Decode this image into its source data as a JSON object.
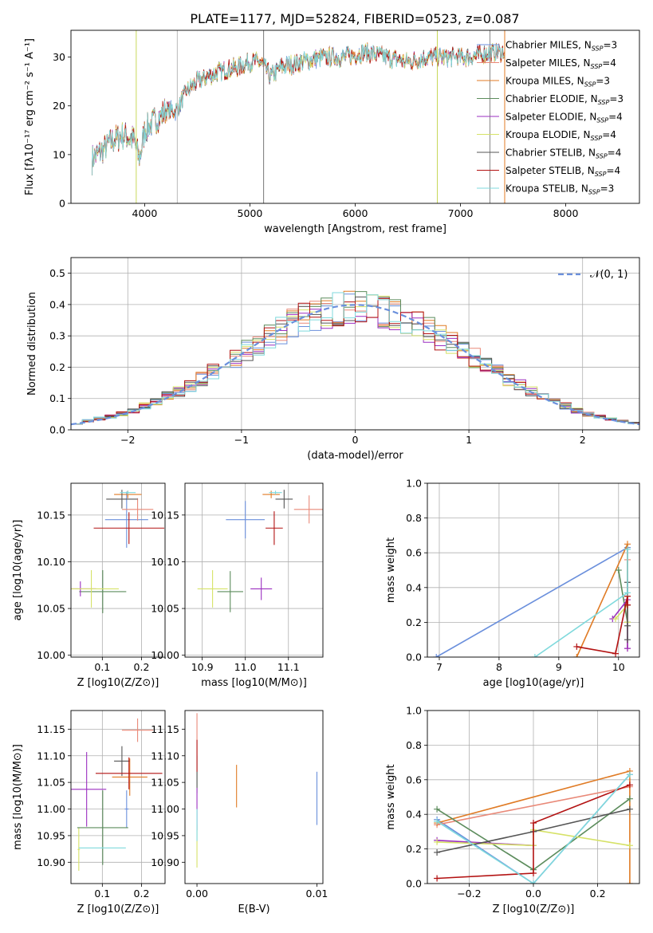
{
  "title": "PLATE=1177, MJD=52824, FIBERID=0523, z=0.087",
  "model_colors": [
    "#6a8fdc",
    "#e98978",
    "#e07b25",
    "#5c8c5c",
    "#9b2fc0",
    "#d6e267",
    "#555555",
    "#b31212",
    "#7fd9dc"
  ],
  "chart_data": [
    {
      "type": "line",
      "id": "spectrum",
      "xlabel": "wavelength [Angstrom, rest frame]",
      "ylabel": "Flux [fλ10⁻¹⁷ erg cm⁻² s⁻¹ A⁻¹]",
      "xlim": [
        3300,
        8700
      ],
      "ylim": [
        0,
        35.5
      ],
      "xticks": [
        4000,
        5000,
        6000,
        7000,
        8000
      ],
      "yticks": [
        0,
        10,
        20,
        30
      ],
      "grid": false,
      "legend_position": "top-right",
      "legend": [
        "Chabrier MILES, N_SSP=3",
        "Salpeter MILES, N_SSP=4",
        "Kroupa MILES, N_SSP=3",
        "Chabrier ELODIE, N_SSP=3",
        "Salpeter ELODIE, N_SSP=4",
        "Kroupa ELODIE, N_SSP=4",
        "Chabrier STELIB, N_SSP=4",
        "Salpeter STELIB, N_SSP=4",
        "Kroupa STELIB, N_SSP=3"
      ],
      "continuum_x": [
        3500,
        3600,
        3700,
        3800,
        3900,
        3950,
        4000,
        4100,
        4200,
        4300,
        4400,
        4500,
        4700,
        4900,
        5000,
        5100,
        5200,
        5300,
        5500,
        5700,
        5900,
        6100,
        6300,
        6500,
        6700,
        6900,
        7100,
        7300
      ],
      "continuum_y": [
        9,
        11,
        13,
        14,
        13,
        9,
        15,
        17,
        19,
        19,
        23,
        25,
        27,
        28,
        29,
        29,
        26,
        28,
        29,
        30,
        30,
        31,
        30,
        29,
        30,
        30,
        30,
        31
      ],
      "vertical_lines": [
        {
          "x": 5130,
          "color": "#777777"
        },
        {
          "x": 4310,
          "color": "#bbbbbb"
        },
        {
          "x": 3920,
          "color": "#c8d85a"
        },
        {
          "x": 6780,
          "color": "#c8d85a"
        },
        {
          "x": 7420,
          "color": "#e07b25"
        },
        {
          "x": 7280,
          "color": "#888888"
        }
      ]
    },
    {
      "type": "histogram",
      "id": "residuals",
      "xlabel": "(data-model)/error",
      "ylabel": "Normed distribution",
      "xlim": [
        -2.5,
        2.5
      ],
      "ylim": [
        0,
        0.55
      ],
      "xticks": [
        -2,
        -1,
        0,
        1,
        2
      ],
      "yticks": [
        0,
        0.1,
        0.2,
        0.3,
        0.4,
        0.5
      ],
      "grid": true,
      "legend": [
        "𝒩(0, 1)"
      ],
      "legend_position": "top-right",
      "bin_width": 0.1,
      "envelope_x": [
        -2.5,
        -2,
        -1.5,
        -1,
        -0.5,
        0,
        0.5,
        1,
        1.5,
        2,
        2.5
      ],
      "envelope_y": [
        0.018,
        0.054,
        0.13,
        0.24,
        0.35,
        0.4,
        0.35,
        0.24,
        0.13,
        0.054,
        0.018
      ]
    },
    {
      "type": "scatter",
      "id": "age_vs_Z",
      "xlabel": "Z [log10(Z/Z⊙)]",
      "ylabel": "age  [log10(age/yr)]",
      "xlim": [
        0.02,
        0.26
      ],
      "ylim": [
        9.998,
        10.184
      ],
      "xticks": [
        0.1,
        0.2
      ],
      "yticks": [
        10.0,
        10.05,
        10.1,
        10.15
      ],
      "grid": true,
      "points": [
        {
          "x": 0.162,
          "y": 10.145,
          "xerr": 0.055,
          "yerr": 0.03
        },
        {
          "x": 0.19,
          "y": 10.156,
          "xerr": 0.04,
          "yerr": 0.012
        },
        {
          "x": 0.165,
          "y": 10.172,
          "xerr": 0.035,
          "yerr": 0.004
        },
        {
          "x": 0.101,
          "y": 10.068,
          "xerr": 0.06,
          "yerr": 0.023
        },
        {
          "x": 0.044,
          "y": 10.071,
          "xerr": 0.04,
          "yerr": 0.008
        },
        {
          "x": 0.072,
          "y": 10.071,
          "xerr": 0.07,
          "yerr": 0.02
        },
        {
          "x": 0.15,
          "y": 10.167,
          "xerr": 0.04,
          "yerr": 0.01
        },
        {
          "x": 0.168,
          "y": 10.136,
          "xerr": 0.09,
          "yerr": 0.017
        },
        {
          "x": 0.165,
          "y": 10.174,
          "xerr": 0.02,
          "yerr": 0.002
        }
      ]
    },
    {
      "type": "scatter",
      "id": "age_vs_mass",
      "xlabel": "mass [log10(M/M⊙)]",
      "ylabel": "",
      "xlim": [
        10.86,
        11.18
      ],
      "ylim": [
        9.998,
        10.184
      ],
      "xticks": [
        10.9,
        11.0,
        11.1
      ],
      "yticks": [
        10.0,
        10.05,
        10.1,
        10.15
      ],
      "grid": true,
      "points": [
        {
          "x": 11.0,
          "y": 10.145,
          "xerr": 0.045,
          "yerr": 0.02
        },
        {
          "x": 11.148,
          "y": 10.156,
          "xerr": 0.035,
          "yerr": 0.015
        },
        {
          "x": 11.06,
          "y": 10.172,
          "xerr": 0.02,
          "yerr": 0.004
        },
        {
          "x": 10.965,
          "y": 10.068,
          "xerr": 0.03,
          "yerr": 0.022
        },
        {
          "x": 11.037,
          "y": 10.071,
          "xerr": 0.025,
          "yerr": 0.012
        },
        {
          "x": 10.924,
          "y": 10.071,
          "xerr": 0.035,
          "yerr": 0.02
        },
        {
          "x": 11.09,
          "y": 10.167,
          "xerr": 0.02,
          "yerr": 0.01
        },
        {
          "x": 11.067,
          "y": 10.136,
          "xerr": 0.02,
          "yerr": 0.018
        },
        {
          "x": 11.07,
          "y": 10.174,
          "xerr": 0.015,
          "yerr": 0.002
        }
      ]
    },
    {
      "type": "line",
      "id": "mass_weight_vs_age",
      "xlabel": "age  [log10(age/yr)]",
      "ylabel": "mass weight",
      "xlim": [
        6.8,
        10.35
      ],
      "ylim": [
        0,
        1
      ],
      "xticks": [
        7,
        8,
        9,
        10
      ],
      "yticks": [
        0,
        0.2,
        0.4,
        0.6,
        0.8,
        1.0
      ],
      "grid": true,
      "series": [
        {
          "x": [
            6.95,
            10.15,
            10.15
          ],
          "y": [
            0.0,
            0.63,
            0.35
          ]
        },
        {
          "x": [
            10.15,
            10.15,
            10.15,
            10.15
          ],
          "y": [
            0.56,
            0.33,
            0.2,
            0.05
          ]
        },
        {
          "x": [
            9.3,
            10.15,
            10.15
          ],
          "y": [
            0.0,
            0.65,
            0.35
          ]
        },
        {
          "x": [
            10.0,
            10.15,
            10.15
          ],
          "y": [
            0.5,
            0.2,
            0.3
          ]
        },
        {
          "x": [
            9.9,
            10.15,
            10.15
          ],
          "y": [
            0.22,
            0.33,
            0.05
          ]
        },
        {
          "x": [
            9.95,
            10.15,
            10.15
          ],
          "y": [
            0.22,
            0.3,
            0.2
          ]
        },
        {
          "x": [
            10.15,
            10.15,
            10.15,
            10.15
          ],
          "y": [
            0.43,
            0.3,
            0.18,
            0.1
          ]
        },
        {
          "x": [
            9.3,
            9.95,
            10.15,
            10.15
          ],
          "y": [
            0.06,
            0.02,
            0.35,
            0.3
          ]
        },
        {
          "x": [
            8.6,
            10.15,
            10.15
          ],
          "y": [
            0.0,
            0.37,
            0.62
          ]
        }
      ]
    },
    {
      "type": "scatter",
      "id": "mass_vs_Z",
      "xlabel": "Z [log10(Z/Z⊙)]",
      "ylabel": "mass [log10(M/M⊙)]",
      "xlim": [
        0.02,
        0.26
      ],
      "ylim": [
        10.86,
        11.185
      ],
      "xticks": [
        0.1,
        0.2
      ],
      "yticks": [
        10.9,
        10.95,
        11.0,
        11.05,
        11.1,
        11.15
      ],
      "grid": true,
      "points": [
        {
          "x": 0.162,
          "y": 11.0,
          "xerr": 0.005,
          "yerr": 0.035
        },
        {
          "x": 0.19,
          "y": 11.148,
          "xerr": 0.04,
          "yerr": 0.022
        },
        {
          "x": 0.17,
          "y": 11.06,
          "xerr": 0.045,
          "yerr": 0.035
        },
        {
          "x": 0.101,
          "y": 10.965,
          "xerr": 0.065,
          "yerr": 0.07
        },
        {
          "x": 0.06,
          "y": 11.037,
          "xerr": 0.05,
          "yerr": 0.07
        },
        {
          "x": 0.04,
          "y": 10.924,
          "xerr": 0.003,
          "yerr": 0.04
        },
        {
          "x": 0.15,
          "y": 11.09,
          "xerr": 0.02,
          "yerr": 0.028
        },
        {
          "x": 0.168,
          "y": 11.067,
          "xerr": 0.085,
          "yerr": 0.03
        },
        {
          "x": 0.1,
          "y": 10.927,
          "xerr": 0.06,
          "yerr": 0.001
        }
      ]
    },
    {
      "type": "scatter",
      "id": "mass_vs_EBV",
      "xlabel": "E(B-V)",
      "ylabel": "",
      "xlim": [
        -0.001,
        0.0105
      ],
      "ylim": [
        10.86,
        11.185
      ],
      "xticks": [
        0.0,
        0.01
      ],
      "yticks": [
        10.9,
        10.95,
        11.0,
        11.05,
        11.1,
        11.15
      ],
      "grid": false,
      "points": [
        {
          "x": 0.01,
          "y": 11.02,
          "yerr": 0.05
        },
        {
          "x": 0.0,
          "y": 11.14,
          "yerr": 0.04
        },
        {
          "x": 0.0033,
          "y": 11.043,
          "yerr": 0.04
        },
        {
          "x": 0.0,
          "y": 11.05,
          "yerr": 0.02
        },
        {
          "x": 0.0,
          "y": 11.0,
          "yerr": 0.04
        },
        {
          "x": 0.0,
          "y": 10.93,
          "yerr": 0.04
        },
        {
          "x": 0.0,
          "y": 11.07,
          "yerr": 0.03
        },
        {
          "x": 0.0,
          "y": 11.1,
          "yerr": 0.03
        },
        {
          "x": 0.0,
          "y": 10.97,
          "yerr": 0.03
        }
      ]
    },
    {
      "type": "line",
      "id": "mass_weight_vs_Z",
      "xlabel": "Z [log10(Z/Z⊙)]",
      "ylabel": "mass weight",
      "xlim": [
        -0.33,
        0.33
      ],
      "ylim": [
        0,
        1
      ],
      "xticks": [
        -0.2,
        0.0,
        0.2
      ],
      "yticks": [
        0,
        0.2,
        0.4,
        0.6,
        0.8,
        1.0
      ],
      "grid": true,
      "series": [
        {
          "x": [
            -0.3,
            0.0,
            0.3
          ],
          "y": [
            0.37,
            0.0,
            0.63
          ]
        },
        {
          "x": [
            -0.3,
            0.3
          ],
          "y": [
            0.34,
            0.56
          ]
        },
        {
          "x": [
            -0.3,
            0.3,
            0.3
          ],
          "y": [
            0.35,
            0.65,
            0.0
          ]
        },
        {
          "x": [
            -0.3,
            0.0,
            0.3
          ],
          "y": [
            0.43,
            0.08,
            0.49
          ]
        },
        {
          "x": [
            -0.3,
            0.0
          ],
          "y": [
            0.25,
            0.22
          ]
        },
        {
          "x": [
            -0.3,
            0.0,
            0.0,
            0.3
          ],
          "y": [
            0.24,
            0.22,
            0.31,
            0.22
          ]
        },
        {
          "x": [
            -0.3,
            0.0,
            0.3
          ],
          "y": [
            0.18,
            0.3,
            0.43
          ]
        },
        {
          "x": [
            -0.3,
            0.0,
            0.0,
            0.3
          ],
          "y": [
            0.03,
            0.06,
            0.35,
            0.57
          ]
        },
        {
          "x": [
            -0.3,
            0.0,
            0.3
          ],
          "y": [
            0.36,
            0.0,
            0.63
          ]
        }
      ]
    }
  ]
}
